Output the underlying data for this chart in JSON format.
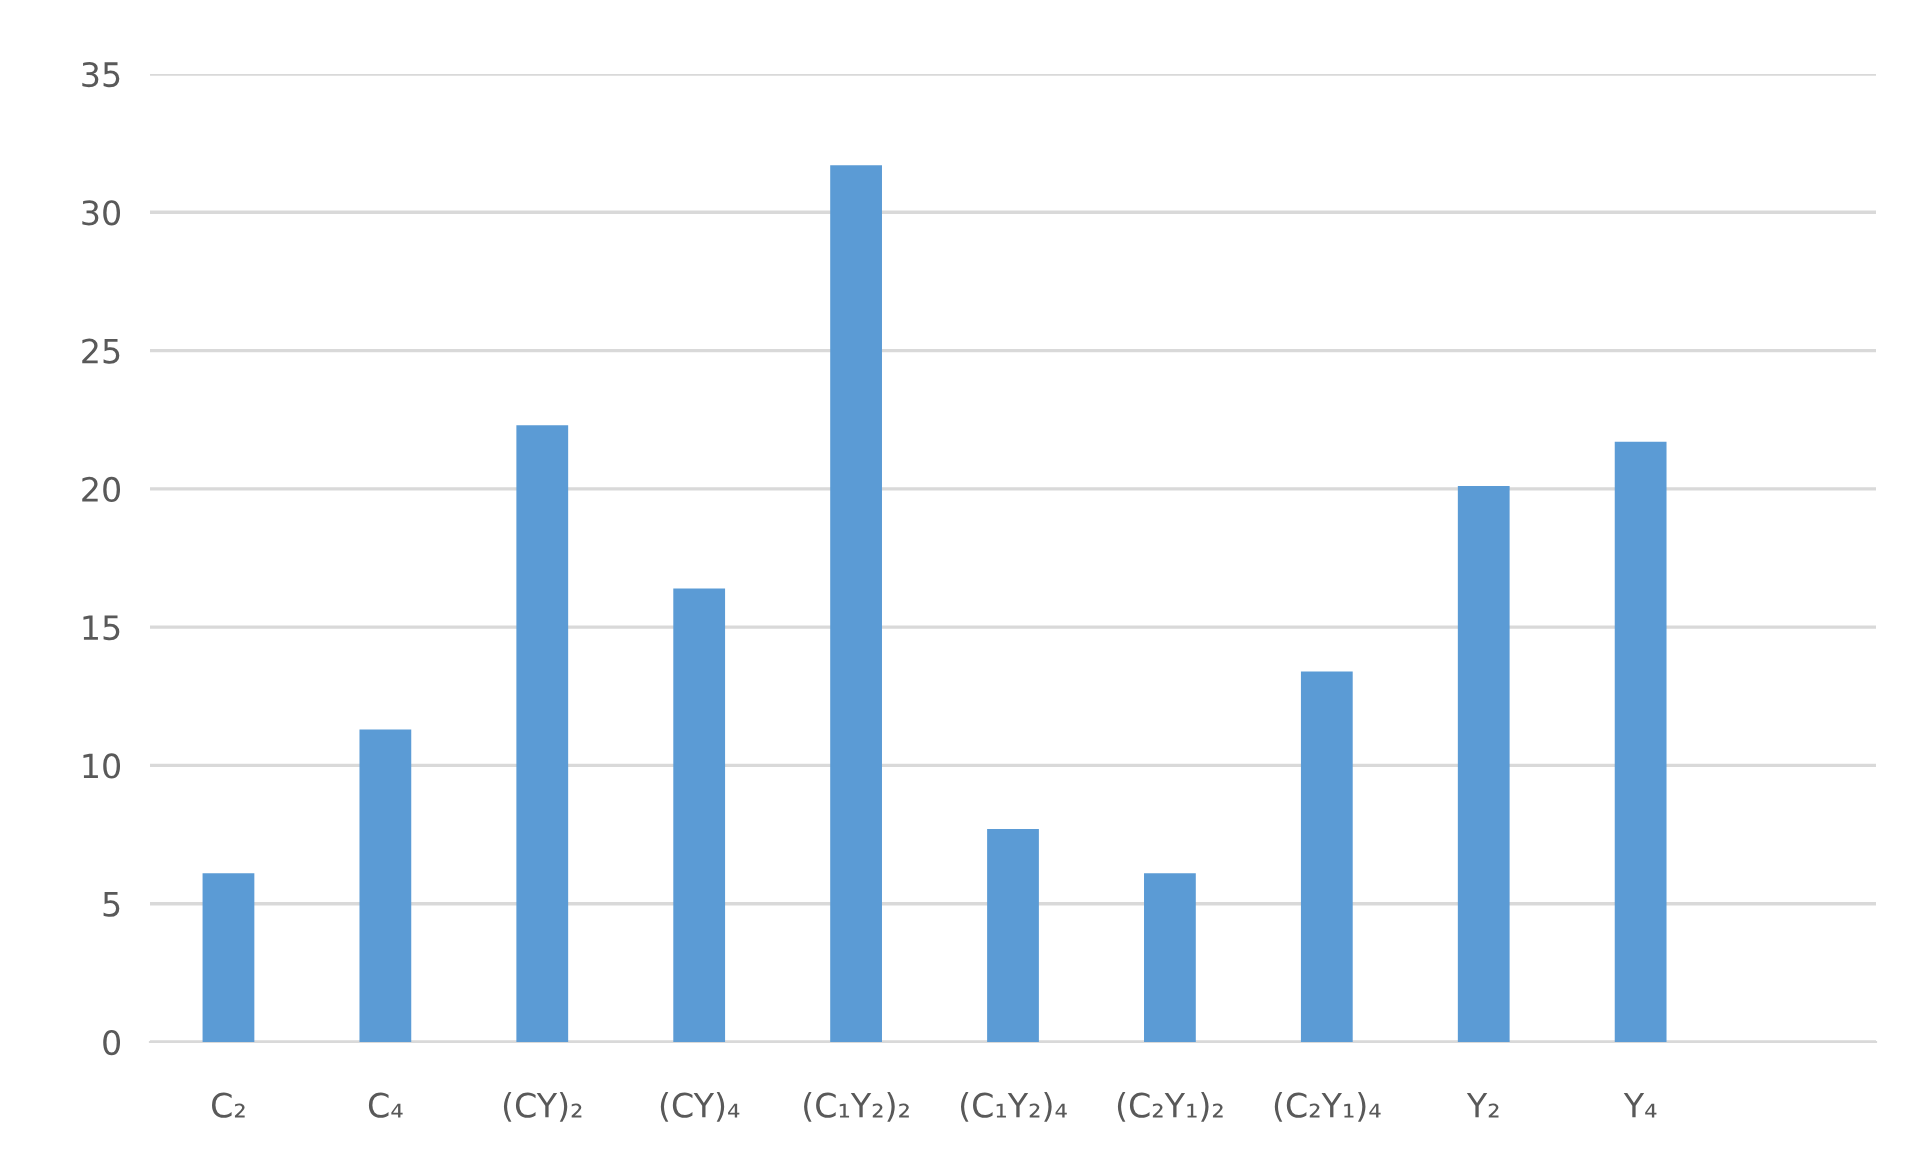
{
  "chart_data": {
    "type": "bar",
    "categories": [
      "C₂",
      "C₄",
      "(CY)₂",
      "(CY)₄",
      "(C₁Y₂)₂",
      "(C₁Y₂)₄",
      "(C₂Y₁)₂",
      "(C₂Y₁)₄",
      "Y₂",
      "Y₄",
      null
    ],
    "values": [
      6.1,
      11.3,
      22.3,
      16.4,
      31.7,
      7.7,
      6.1,
      13.4,
      20.1,
      21.7,
      null
    ],
    "color": "#5b9bd5",
    "ylim": [
      0,
      35
    ],
    "yticks": [
      0,
      5,
      10,
      15,
      20,
      25,
      30,
      35
    ],
    "grid": "y",
    "legend": false
  }
}
